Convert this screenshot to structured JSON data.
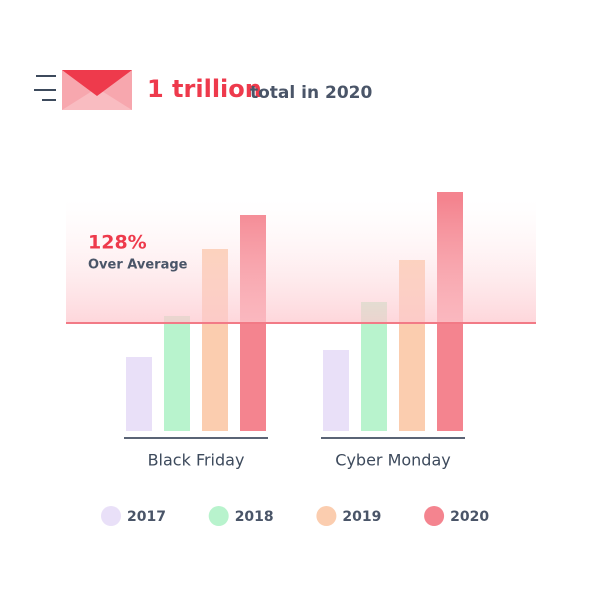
{
  "chart_data": {
    "type": "bar",
    "title": "1 trillion",
    "subtitle": "total in 2020",
    "annotation": {
      "value": "128%",
      "text": "Over Average"
    },
    "categories": [
      "Black Friday",
      "Cyber Monday"
    ],
    "series": [
      {
        "name": "2017",
        "color": "#e9e0f8",
        "values": [
          74,
          81
        ]
      },
      {
        "name": "2018",
        "color": "#b8f3cd",
        "values": [
          115,
          129
        ]
      },
      {
        "name": "2019",
        "color": "#fbcdaf",
        "values": [
          182,
          171
        ]
      },
      {
        "name": "2020",
        "color": "#f4848f",
        "values": [
          216,
          239
        ]
      }
    ]
  }
}
